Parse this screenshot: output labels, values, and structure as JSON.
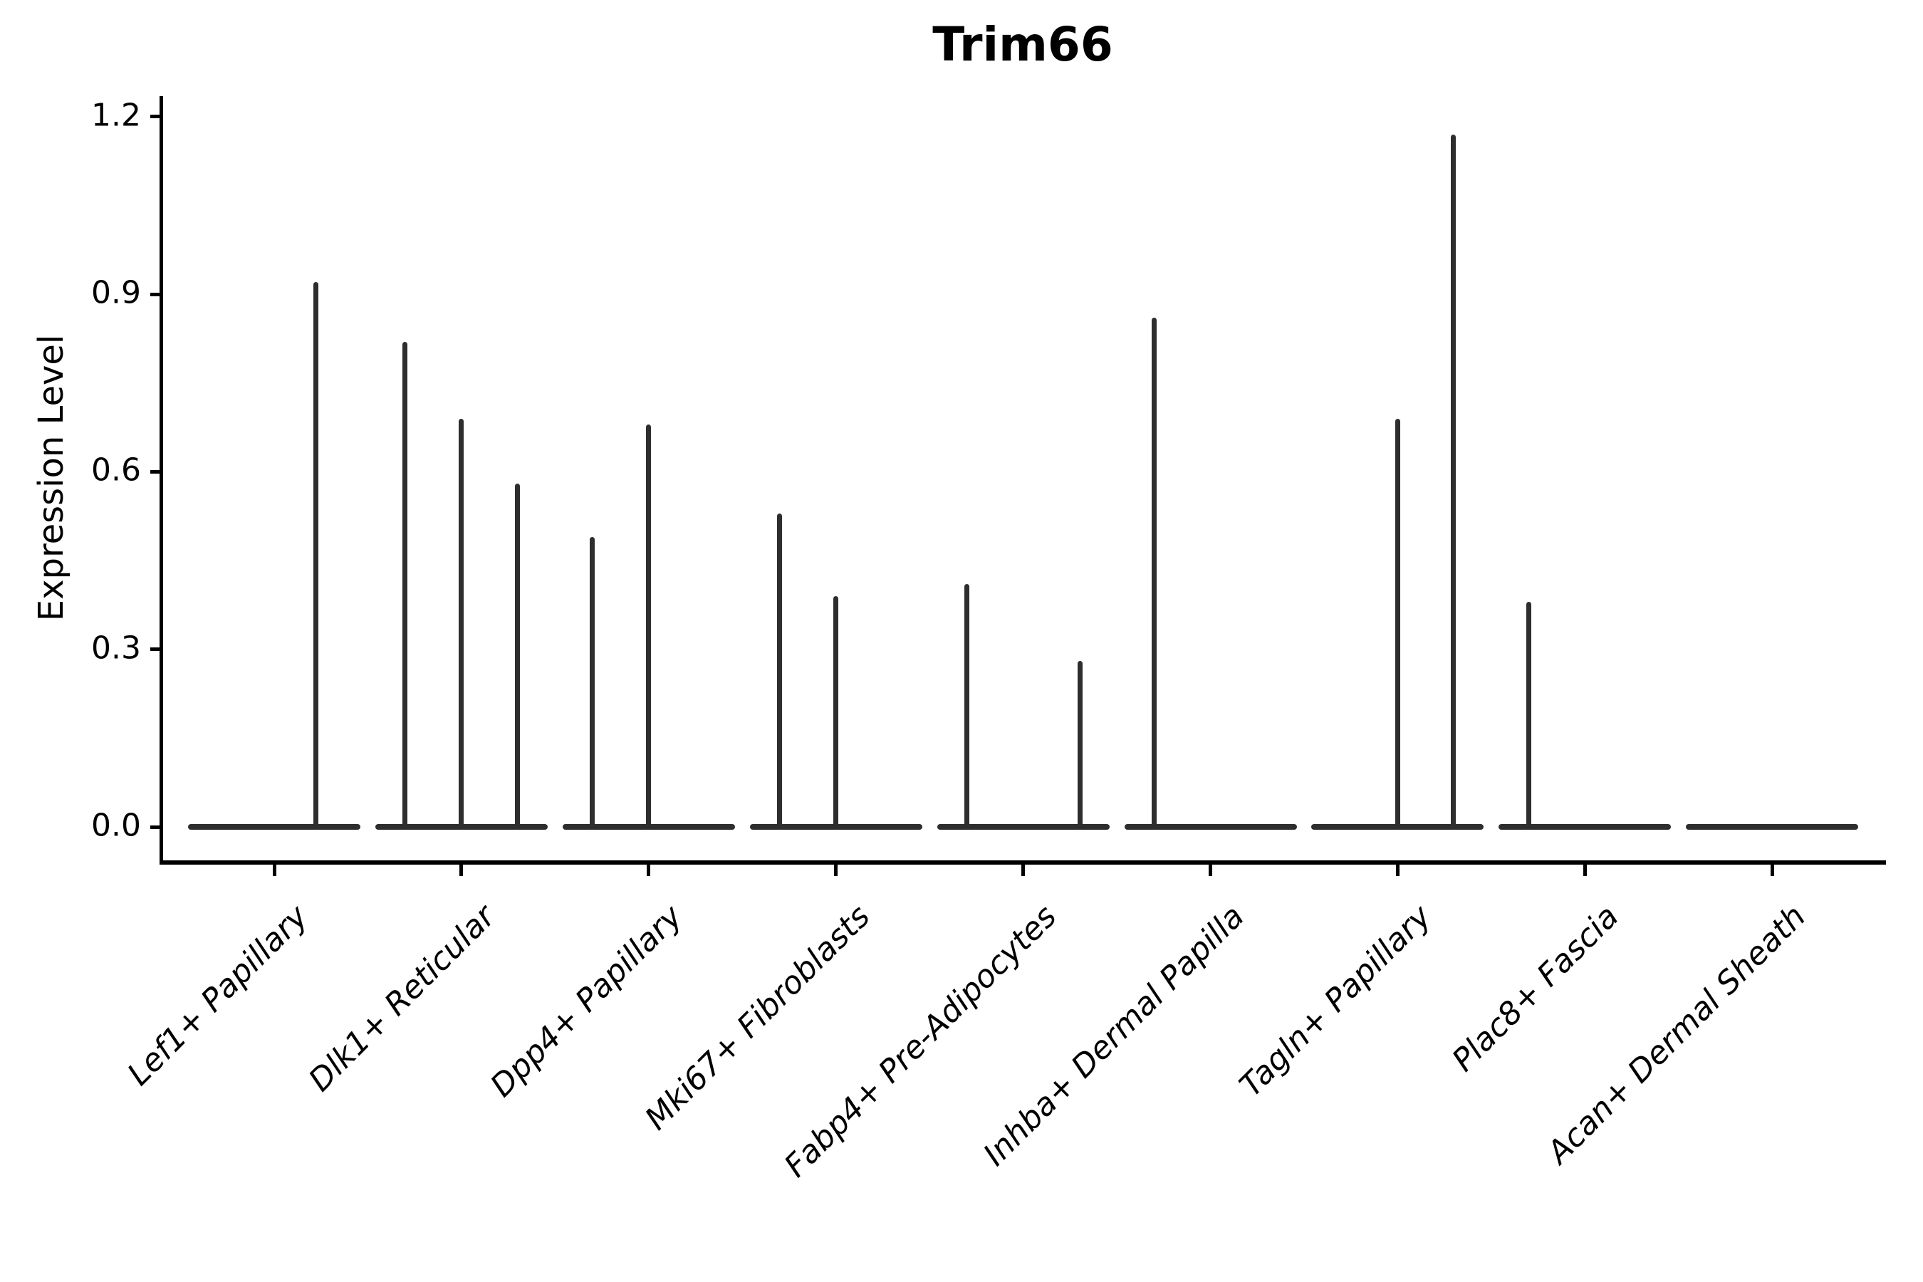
{
  "title": "Trim66",
  "y_axis": {
    "label": "Expression Level",
    "ticks": [
      "0.0",
      "0.3",
      "0.6",
      "0.9",
      "1.2"
    ]
  },
  "x_axis": {
    "categories": [
      "Lef1+ Papillary",
      "Dlk1+ Reticular",
      "Dpp4+ Papillary",
      "Mki67+ Fibroblasts",
      "Fabp4+ Pre-Adipocytes",
      "Inhba+ Dermal Papilla",
      "Tagln+ Papillary",
      "Plac8+ Fascia",
      "Acan+ Dermal Sheath"
    ]
  },
  "colors": {
    "ink": "#2e2e2e",
    "axis": "#000000",
    "background": "#ffffff"
  },
  "chart_data": {
    "type": "violin",
    "title": "Trim66",
    "xlabel": "",
    "ylabel": "Expression Level",
    "ylim": [
      0,
      1.2
    ],
    "yticks": [
      0.0,
      0.3,
      0.6,
      0.9,
      1.2
    ],
    "grid": false,
    "legend": false,
    "categories": [
      "Lef1+ Papillary",
      "Dlk1+ Reticular",
      "Dpp4+ Papillary",
      "Mki67+ Fibroblasts",
      "Fabp4+ Pre-Adipocytes",
      "Inhba+ Dermal Papilla",
      "Tagln+ Papillary",
      "Plac8+ Fascia",
      "Acan+ Dermal Sheath"
    ],
    "description": "Each category shows a flattened violin (most cells at expression 0) with thin density spikes rising to the maximum expression of sub-violins; dx is the spike offset in px from the category center.",
    "violins": [
      {
        "category": "Lef1+ Papillary",
        "baseline_value": 0.0,
        "spikes": [
          {
            "dx": 58,
            "max": 0.92
          }
        ]
      },
      {
        "category": "Dlk1+ Reticular",
        "baseline_value": 0.0,
        "spikes": [
          {
            "dx": -79,
            "max": 0.82
          },
          {
            "dx": 0,
            "max": 0.69
          },
          {
            "dx": 79,
            "max": 0.58
          }
        ]
      },
      {
        "category": "Dpp4+ Papillary",
        "baseline_value": 0.0,
        "spikes": [
          {
            "dx": -79,
            "max": 0.49
          },
          {
            "dx": 0,
            "max": 0.68
          }
        ]
      },
      {
        "category": "Mki67+ Fibroblasts",
        "baseline_value": 0.0,
        "spikes": [
          {
            "dx": -79,
            "max": 0.53
          },
          {
            "dx": 0,
            "max": 0.39
          }
        ]
      },
      {
        "category": "Fabp4+ Pre-Adipocytes",
        "baseline_value": 0.0,
        "spikes": [
          {
            "dx": -79,
            "max": 0.41
          },
          {
            "dx": 80,
            "max": 0.28
          }
        ]
      },
      {
        "category": "Inhba+ Dermal Papilla",
        "baseline_value": 0.0,
        "spikes": [
          {
            "dx": -79,
            "max": 0.86
          }
        ]
      },
      {
        "category": "Tagln+ Papillary",
        "baseline_value": 0.0,
        "spikes": [
          {
            "dx": 0,
            "max": 0.69
          },
          {
            "dx": 78,
            "max": 1.17
          }
        ]
      },
      {
        "category": "Plac8+ Fascia",
        "baseline_value": 0.0,
        "spikes": [
          {
            "dx": -79,
            "max": 0.38
          }
        ]
      },
      {
        "category": "Acan+ Dermal Sheath",
        "baseline_value": 0.0,
        "spikes": []
      }
    ]
  }
}
